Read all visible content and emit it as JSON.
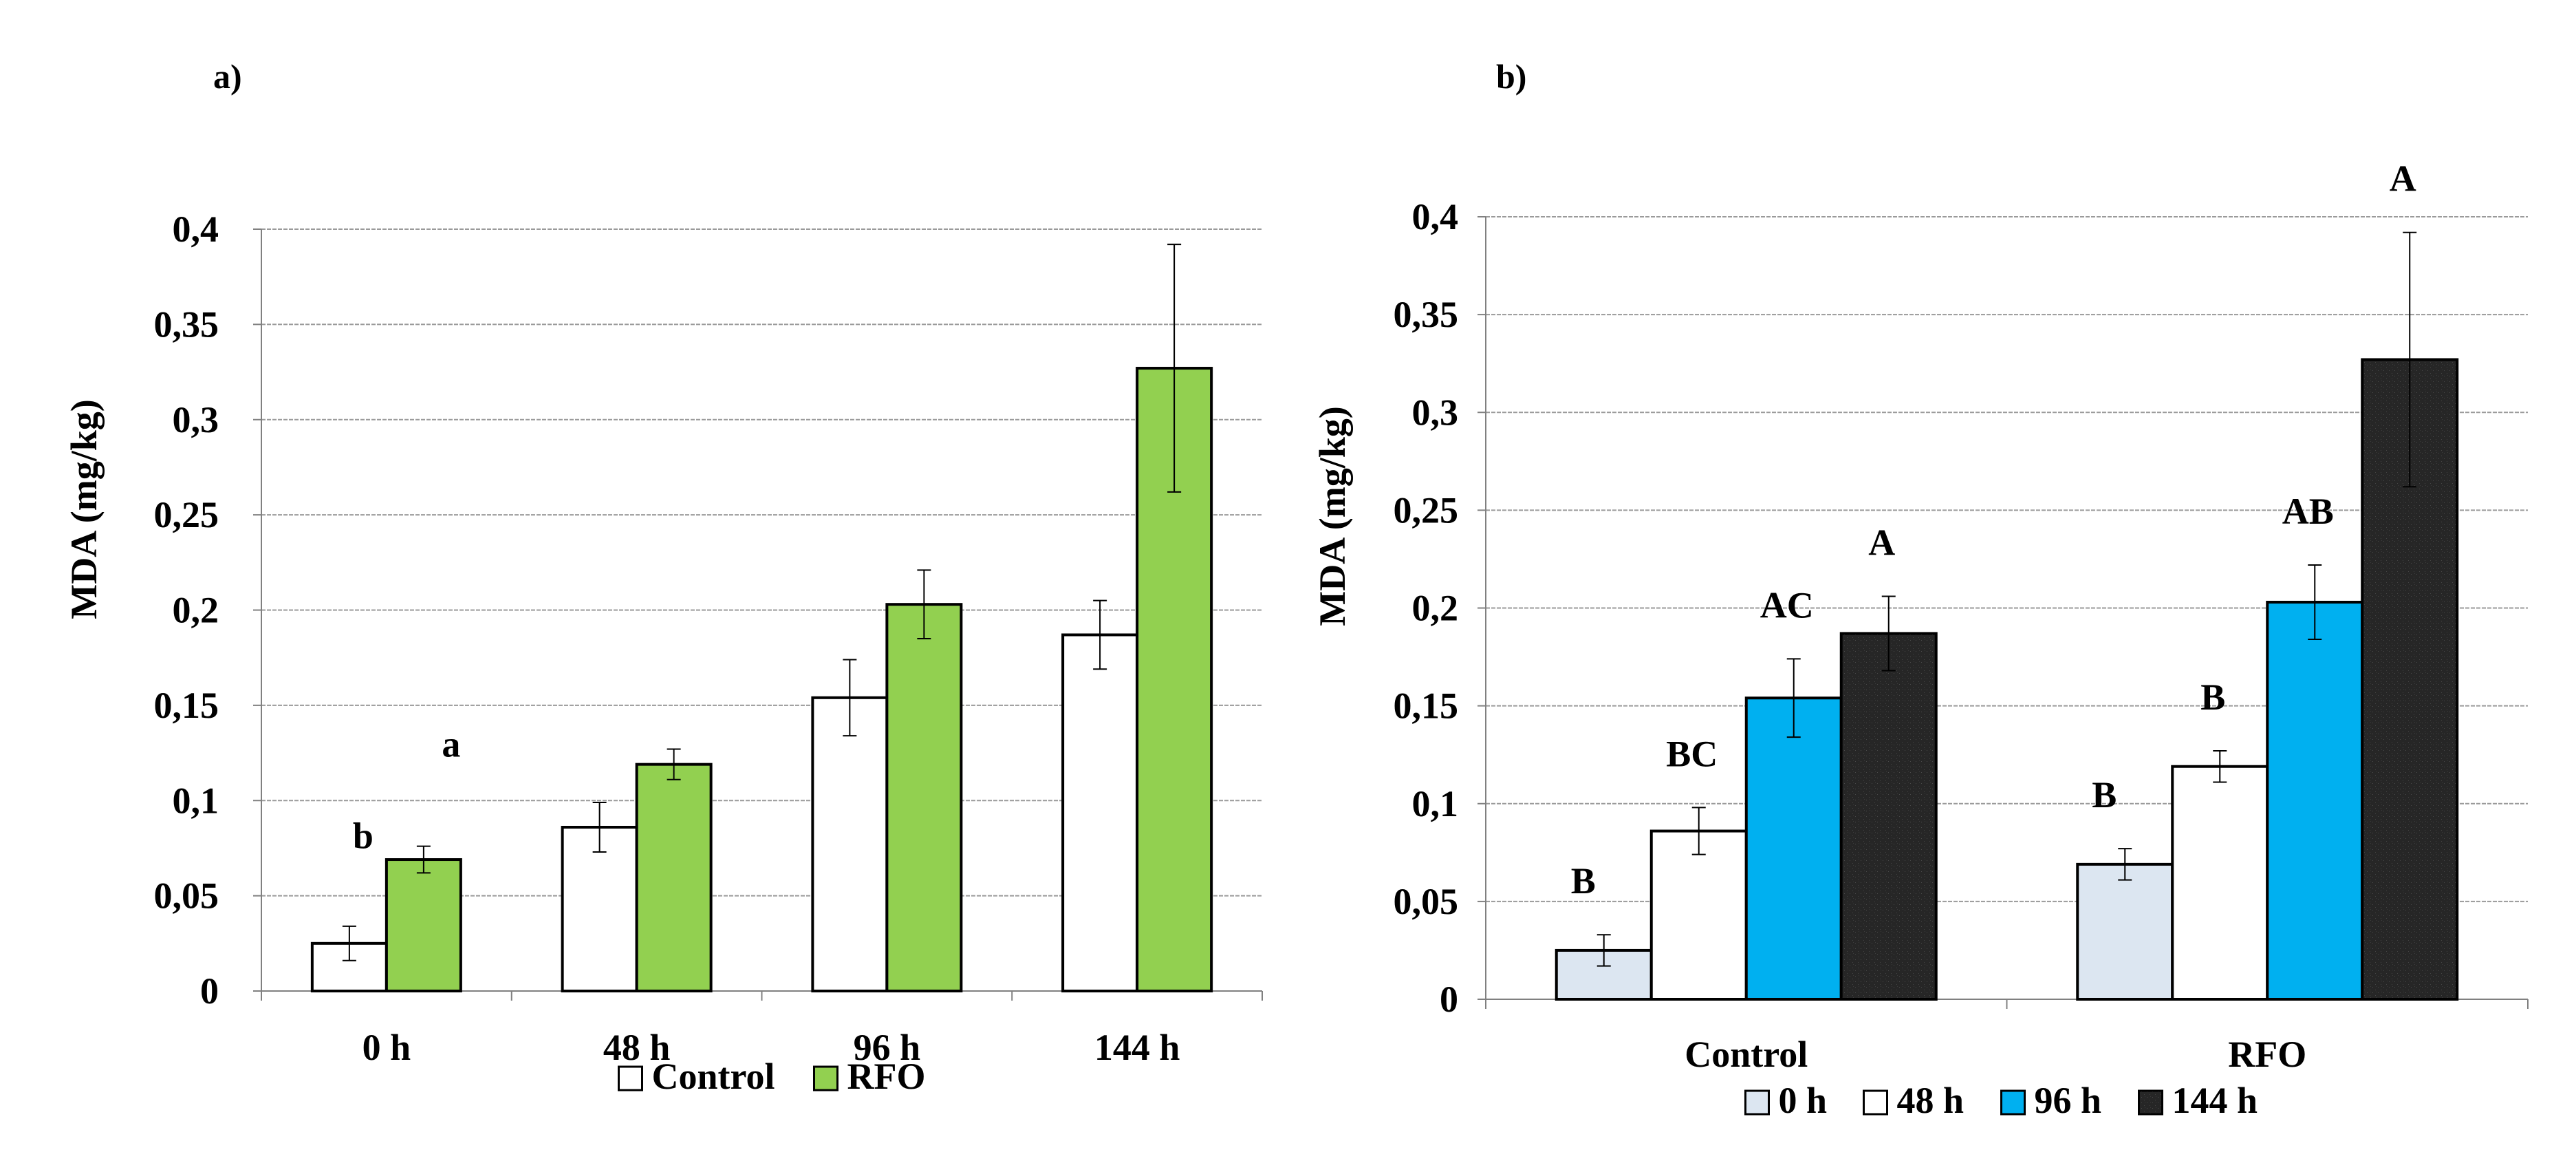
{
  "colors": {
    "control": "#ffffff",
    "rfo": "#92d050",
    "h0": "#dce6f1",
    "h48": "#ffffff",
    "h96": "#00b0f0",
    "h144": "#262626",
    "grid": "#9a9a9a",
    "border": "#000000"
  },
  "chart_data": [
    {
      "panel": "a)",
      "type": "bar",
      "ylabel": "MDA (mg/kg)",
      "ylim": [
        0,
        0.4
      ],
      "yticks": [
        "0",
        "0,05",
        "0,1",
        "0,15",
        "0,2",
        "0,25",
        "0,3",
        "0,35",
        "0,4"
      ],
      "grid": true,
      "legend_position": "bottom",
      "categories": [
        "0 h",
        "48 h",
        "96 h",
        "144 h"
      ],
      "series": [
        {
          "name": "Control",
          "values": [
            0.025,
            0.086,
            0.154,
            0.187
          ],
          "errors": [
            0.009,
            0.013,
            0.02,
            0.018
          ],
          "color_key": "control"
        },
        {
          "name": "RFO",
          "values": [
            0.069,
            0.119,
            0.203,
            0.327
          ],
          "errors": [
            0.007,
            0.008,
            0.018,
            0.065
          ],
          "color_key": "rfo"
        }
      ],
      "annotations": [
        {
          "text": "b",
          "category": 0,
          "series": 0,
          "value": 0.075
        },
        {
          "text": "a",
          "category": 0,
          "series": 1,
          "value": 0.123
        }
      ]
    },
    {
      "panel": "b)",
      "type": "bar",
      "ylabel": "MDA (mg/kg)",
      "ylim": [
        0,
        0.4
      ],
      "yticks": [
        "0",
        "0,05",
        "0,1",
        "0,15",
        "0,2",
        "0,25",
        "0,3",
        "0,35",
        "0,4"
      ],
      "grid": true,
      "legend_position": "bottom",
      "categories": [
        "Control",
        "RFO"
      ],
      "series": [
        {
          "name": "0 h",
          "values": [
            0.025,
            0.069
          ],
          "errors": [
            0.008,
            0.008
          ],
          "color_key": "h0",
          "labels": [
            "B",
            "B"
          ]
        },
        {
          "name": "48 h",
          "values": [
            0.086,
            0.119
          ],
          "errors": [
            0.012,
            0.008
          ],
          "color_key": "h48",
          "labels": [
            "BC",
            "B"
          ]
        },
        {
          "name": "96 h",
          "values": [
            0.154,
            0.203
          ],
          "errors": [
            0.02,
            0.019
          ],
          "color_key": "h96",
          "labels": [
            "AC",
            "AB"
          ]
        },
        {
          "name": "144 h",
          "values": [
            0.187,
            0.327
          ],
          "errors": [
            0.019,
            0.065
          ],
          "color_key": "h144",
          "labels": [
            "A",
            "A"
          ]
        }
      ]
    }
  ]
}
